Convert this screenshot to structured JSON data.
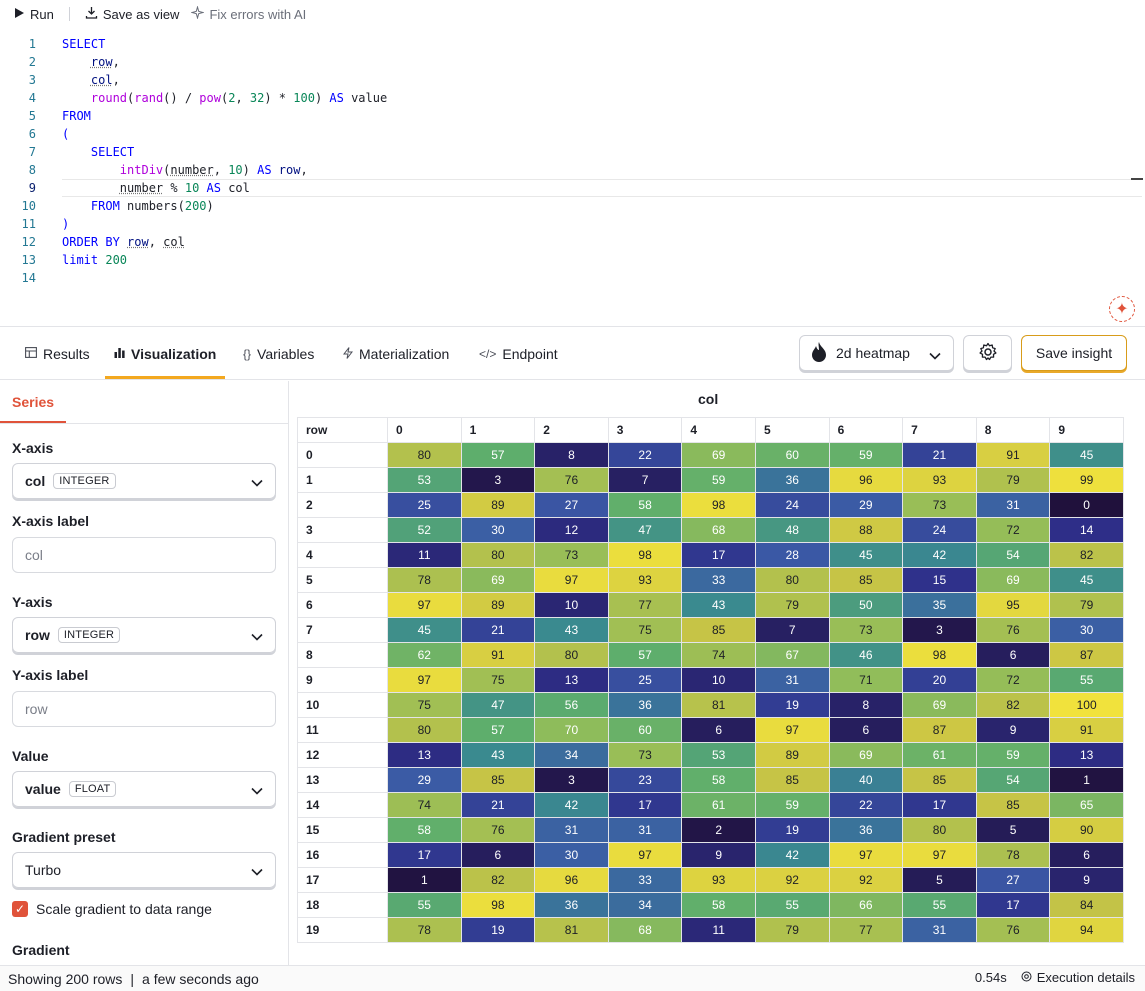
{
  "toolbar": {
    "run_label": "Run",
    "save_view_label": "Save as view",
    "fix_errors_label": "Fix errors with AI"
  },
  "editor": {
    "lines": [
      {
        "num": "1",
        "html": "<span class='k'>SELECT</span>"
      },
      {
        "num": "2",
        "html": "    <span class='id sq'>row</span><span class='o'>,</span>"
      },
      {
        "num": "3",
        "html": "    <span class='id sq'>col</span><span class='o'>,</span>"
      },
      {
        "num": "4",
        "html": "    <span class='f2'>round</span><span class='o'>(</span><span class='f2'>rand</span><span class='o'>() / </span><span class='f2'>pow</span><span class='o'>(</span><span class='n'>2</span><span class='o'>, </span><span class='n'>32</span><span class='o'>) * </span><span class='n'>100</span><span class='o'>) </span><span class='k'>AS</span><span class='o'> value</span>"
      },
      {
        "num": "5",
        "html": "<span class='k'>FROM</span>"
      },
      {
        "num": "6",
        "html": "<span class='k'>(</span>"
      },
      {
        "num": "7",
        "html": "    <span class='k'>SELECT</span>"
      },
      {
        "num": "8",
        "html": "        <span class='f2'>intDiv</span><span class='o'>(</span><span class='o sq'>number</span><span class='o'>, </span><span class='n'>10</span><span class='o'>) </span><span class='k'>AS</span><span class='o'> </span><span class='id'>row</span><span class='o'>,</span>"
      },
      {
        "num": "9",
        "html": "        <span class='o sq'>number</span><span class='o'> % </span><span class='n'>10</span><span class='o'> </span><span class='k'>AS</span><span class='o'> col</span>"
      },
      {
        "num": "10",
        "html": "    <span class='k'>FROM</span><span class='o'> numbers(</span><span class='n'>200</span><span class='o'>)</span>"
      },
      {
        "num": "11",
        "html": "<span class='k'>)</span>"
      },
      {
        "num": "12",
        "html": "<span class='k'>ORDER BY</span><span class='o'> </span><span class='id sq'>row</span><span class='o'>, </span><span class='o sq'>col</span>"
      },
      {
        "num": "13",
        "html": "<span class='k'>limit</span><span class='o'> </span><span class='n'>200</span>"
      },
      {
        "num": "14",
        "html": ""
      }
    ]
  },
  "tabs": {
    "results": "Results",
    "visualization": "Visualization",
    "variables": "Variables",
    "materialization": "Materialization",
    "endpoint": "Endpoint"
  },
  "viz_type": "2d heatmap",
  "save_insight_label": "Save insight",
  "panel": {
    "series_tab": "Series",
    "x_axis_label": "X-axis",
    "x_axis_value": "col",
    "x_axis_type": "INTEGER",
    "x_axis_label_title": "X-axis label",
    "x_axis_label_placeholder": "col",
    "y_axis_label": "Y-axis",
    "y_axis_value": "row",
    "y_axis_type": "INTEGER",
    "y_axis_label_title": "Y-axis label",
    "y_axis_label_placeholder": "row",
    "value_label": "Value",
    "value_value": "value",
    "value_type": "FLOAT",
    "gradient_preset_label": "Gradient preset",
    "gradient_preset_value": "Turbo",
    "scale_gradient_label": "Scale gradient to data range",
    "gradient_label": "Gradient"
  },
  "chart_data": {
    "type": "heatmap",
    "title": "col",
    "row_header": "row",
    "x_categories": [
      "0",
      "1",
      "2",
      "3",
      "4",
      "5",
      "6",
      "7",
      "8",
      "9"
    ],
    "y_categories": [
      "0",
      "1",
      "2",
      "3",
      "4",
      "5",
      "6",
      "7",
      "8",
      "9",
      "10",
      "11",
      "12",
      "13",
      "14",
      "15",
      "16",
      "17",
      "18",
      "19"
    ],
    "values": [
      [
        80,
        57,
        8,
        22,
        69,
        60,
        59,
        21,
        91,
        45
      ],
      [
        53,
        3,
        76,
        7,
        59,
        36,
        96,
        93,
        79,
        99
      ],
      [
        25,
        89,
        27,
        58,
        98,
        24,
        29,
        73,
        31,
        0
      ],
      [
        52,
        30,
        12,
        47,
        68,
        48,
        88,
        24,
        72,
        14
      ],
      [
        11,
        80,
        73,
        98,
        17,
        28,
        45,
        42,
        54,
        82
      ],
      [
        78,
        69,
        97,
        93,
        33,
        80,
        85,
        15,
        69,
        45
      ],
      [
        97,
        89,
        10,
        77,
        43,
        79,
        50,
        35,
        95,
        79
      ],
      [
        45,
        21,
        43,
        75,
        85,
        7,
        73,
        3,
        76,
        30
      ],
      [
        62,
        91,
        80,
        57,
        74,
        67,
        46,
        98,
        6,
        87
      ],
      [
        97,
        75,
        13,
        25,
        10,
        31,
        71,
        20,
        72,
        55
      ],
      [
        75,
        47,
        56,
        36,
        81,
        19,
        8,
        69,
        82,
        100
      ],
      [
        80,
        57,
        70,
        60,
        6,
        97,
        6,
        87,
        9,
        91
      ],
      [
        13,
        43,
        34,
        73,
        53,
        89,
        69,
        61,
        59,
        13
      ],
      [
        29,
        85,
        3,
        23,
        58,
        85,
        40,
        85,
        54,
        1
      ],
      [
        74,
        21,
        42,
        17,
        61,
        59,
        22,
        17,
        85,
        65
      ],
      [
        58,
        76,
        31,
        31,
        2,
        19,
        36,
        80,
        5,
        90
      ],
      [
        17,
        6,
        30,
        97,
        9,
        42,
        97,
        97,
        78,
        6
      ],
      [
        1,
        82,
        96,
        33,
        93,
        92,
        92,
        5,
        27,
        9
      ],
      [
        55,
        98,
        36,
        34,
        58,
        55,
        66,
        55,
        17,
        84
      ],
      [
        78,
        19,
        81,
        68,
        11,
        79,
        77,
        31,
        76,
        94
      ]
    ],
    "value_range": [
      0,
      100
    ],
    "color_scale": [
      "#20113c",
      "#2e2f8a",
      "#3b5aa6",
      "#3a8a8f",
      "#5eae6c",
      "#93bd59",
      "#c9c445",
      "#f1e23c"
    ]
  },
  "status": {
    "rows_text": "Showing 200 rows",
    "separator": "|",
    "time_text": "a few seconds ago",
    "duration": "0.54s",
    "exec_details": "Execution details"
  }
}
